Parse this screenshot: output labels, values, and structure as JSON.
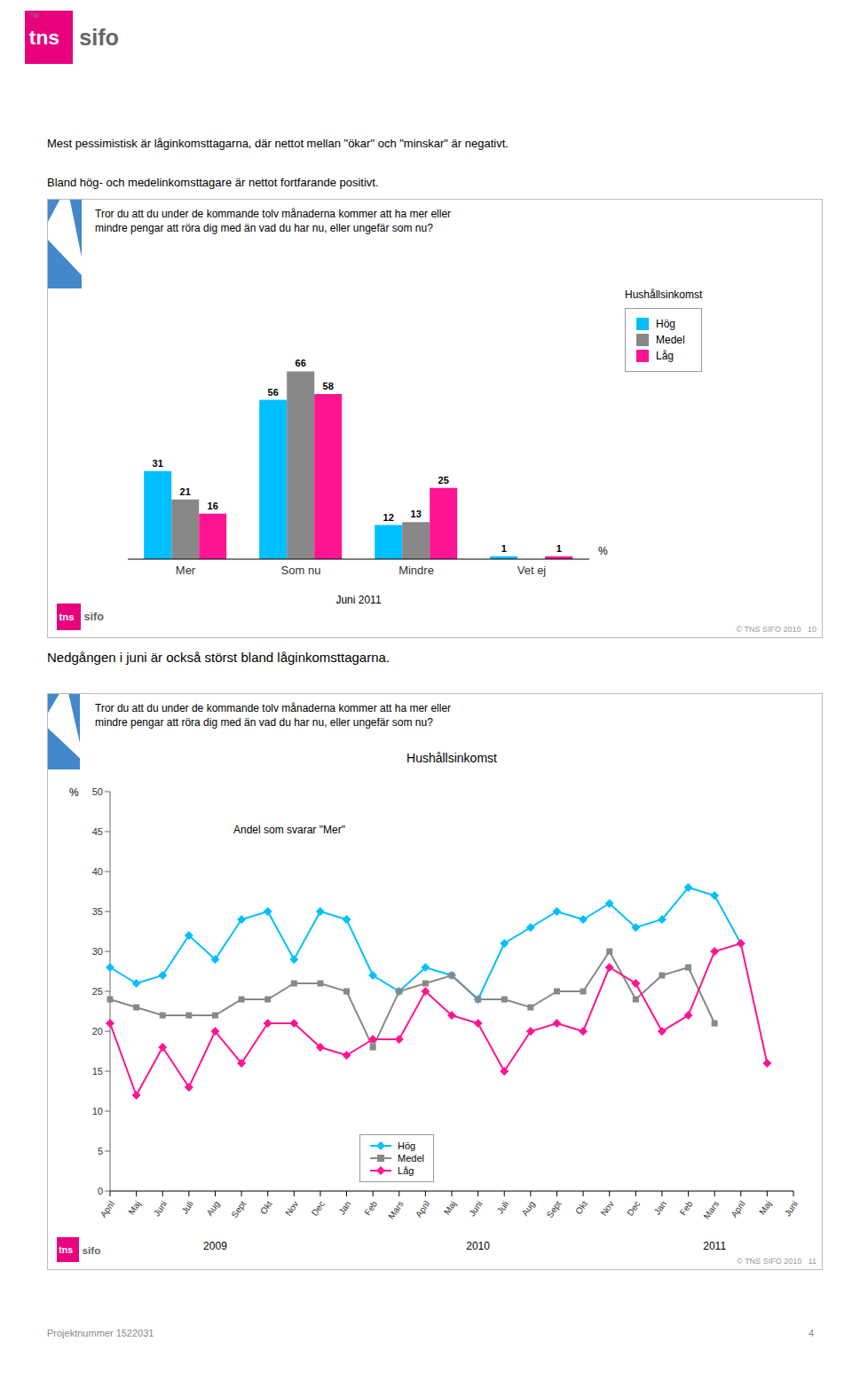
{
  "chart_data": [
    {
      "type": "bar",
      "title": "Mest pessimistisk är låginkomsttagarna, där nettot mellan \"ökar\" och \"minskar\" är negativt.",
      "subtitle": "Bland hög- och medelinkomsttagare är nettot fortfarande positivt.",
      "annotations": [
        "Tror du att du under de kommande tolv månaderna kommer att ha mer eller\nmindre pengar att röra dig med än vad du har nu, eller ungefär som nu?",
        "© TNS SIFO 2010   10",
        "tns",
        "TM",
        "sifo"
      ],
      "categories": [
        "Mer",
        "Som nu",
        "Mindre",
        "Vet ej"
      ],
      "series": [
        {
          "name": "Hög",
          "color": "#00BFFF",
          "values": [
            31,
            56,
            12,
            1
          ]
        },
        {
          "name": "Medel",
          "color": "#888888",
          "values": [
            21,
            66,
            13,
            0
          ]
        },
        {
          "name": "Låg",
          "color": "#FF1493",
          "values": [
            16,
            58,
            25,
            1
          ]
        }
      ],
      "xlabel": "Juni 2011",
      "ylabel": "%",
      "legend_title": "Hushållsinkomst",
      "ylim": [
        0,
        78
      ],
      "tick_labels": "x",
      "data_labels": true,
      "grid": false
    },
    {
      "type": "line",
      "title": "Hushållsinkomst",
      "subtitle": "Andel som svarar \"Mer\"",
      "annotations": [
        "Nedgången i juni är också störst bland låginkomsttagarna.",
        "Tror du att du under de kommande tolv månaderna kommer att ha mer eller\nmindre pengar att röra dig med än vad du har nu, eller ungefär som nu?",
        "2009",
        "2010",
        "2011",
        "© TNS SIFO 2010   11",
        "Projektnummer 1522031",
        "4"
      ],
      "ylabel": "%",
      "categories": [
        "April",
        "Maj",
        "Juni",
        "Juli",
        "Aug",
        "Sept",
        "Okt",
        "Nov",
        "Dec",
        "Jan",
        "Feb",
        "Mars",
        "April",
        "Maj",
        "Juni",
        "Juli",
        "Aug",
        "Sept",
        "Okt",
        "Nov",
        "Dec",
        "Jan",
        "Feb",
        "Mars",
        "April",
        "Maj",
        "Juni"
      ],
      "series": [
        {
          "name": "Hög",
          "color": "#00BFFF",
          "marker": "diamond",
          "values": [
            28,
            26,
            27,
            32,
            29,
            34,
            35,
            29,
            35,
            34,
            27,
            25,
            28,
            27,
            24,
            31,
            33,
            35,
            34,
            36,
            33,
            34,
            38,
            37,
            31,
            null,
            null
          ]
        },
        {
          "name": "Medel",
          "color": "#888888",
          "marker": "square",
          "values": [
            24,
            23,
            22,
            22,
            22,
            24,
            24,
            26,
            26,
            25,
            18,
            25,
            26,
            27,
            24,
            24,
            23,
            25,
            25,
            30,
            24,
            27,
            28,
            21,
            null,
            null,
            null
          ]
        },
        {
          "name": "Låg",
          "color": "#FF1493",
          "marker": "diamond",
          "values": [
            21,
            12,
            18,
            13,
            20,
            16,
            21,
            21,
            18,
            17,
            19,
            19,
            25,
            22,
            21,
            15,
            20,
            21,
            20,
            28,
            26,
            20,
            22,
            30,
            31,
            16,
            null
          ]
        }
      ],
      "ylim": [
        0,
        50
      ],
      "yticks": [
        0,
        5,
        10,
        15,
        20,
        25,
        30,
        35,
        40,
        45,
        50
      ],
      "grid": false
    }
  ]
}
